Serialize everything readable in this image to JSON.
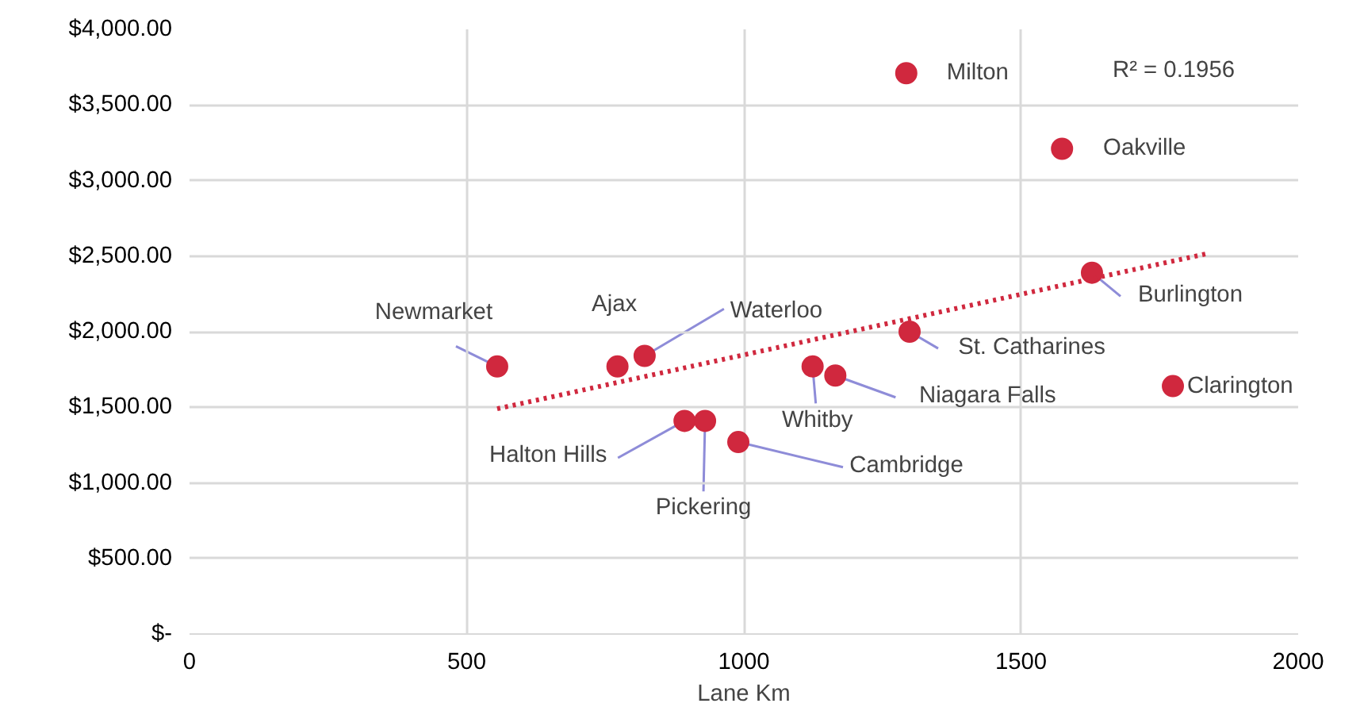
{
  "chart_data": {
    "type": "scatter",
    "xlabel": "Lane Km",
    "xlim": [
      0,
      2000
    ],
    "xticks": [
      0,
      500,
      1000,
      1500,
      2000
    ],
    "ylim": [
      0,
      4000
    ],
    "yticks": [
      {
        "value": 0,
        "label": "$-"
      },
      {
        "value": 500,
        "label": "$500.00"
      },
      {
        "value": 1000,
        "label": "$1,000.00"
      },
      {
        "value": 1500,
        "label": "$1,500.00"
      },
      {
        "value": 2000,
        "label": "$2,000.00"
      },
      {
        "value": 2500,
        "label": "$2,500.00"
      },
      {
        "value": 3000,
        "label": "$3,000.00"
      },
      {
        "value": 3500,
        "label": "$3,500.00"
      },
      {
        "value": 4000,
        "label": "$4,000.00"
      }
    ],
    "grid": true,
    "marker": "circle",
    "series": [
      {
        "color": "#d0283e",
        "x": [
          555,
          772,
          821,
          893,
          930,
          990,
          1124,
          1165,
          1299,
          1293,
          1574,
          1628,
          1774
        ],
        "values": [
          1770,
          1770,
          1840,
          1410,
          1410,
          1270,
          1770,
          1710,
          2000,
          3710,
          3210,
          2390,
          1640
        ]
      },
      {
        "type": "line",
        "color": "#d0283e",
        "line_style": "dotted",
        "marker": "none",
        "x": [
          555,
          1840
        ],
        "values": [
          1490,
          2520
        ]
      }
    ],
    "annotations": [
      {
        "text": "Newmarket",
        "x": 555,
        "y": 1770
      },
      {
        "text": "Ajax",
        "x": 772,
        "y": 1770
      },
      {
        "text": "Waterloo",
        "x": 821,
        "y": 1840
      },
      {
        "text": "Halton Hills",
        "x": 893,
        "y": 1410
      },
      {
        "text": "Pickering",
        "x": 930,
        "y": 1410
      },
      {
        "text": "Cambridge",
        "x": 990,
        "y": 1270
      },
      {
        "text": "Whitby",
        "x": 1124,
        "y": 1770
      },
      {
        "text": "Niagara Falls",
        "x": 1165,
        "y": 1710
      },
      {
        "text": "St. Catharines",
        "x": 1299,
        "y": 2000
      },
      {
        "text": "Milton",
        "x": 1293,
        "y": 3710
      },
      {
        "text": "Oakville",
        "x": 1574,
        "y": 3210
      },
      {
        "text": "Burlington",
        "x": 1628,
        "y": 2390
      },
      {
        "text": "Clarington",
        "x": 1774,
        "y": 1640
      },
      "R² = 0.1956"
    ]
  }
}
